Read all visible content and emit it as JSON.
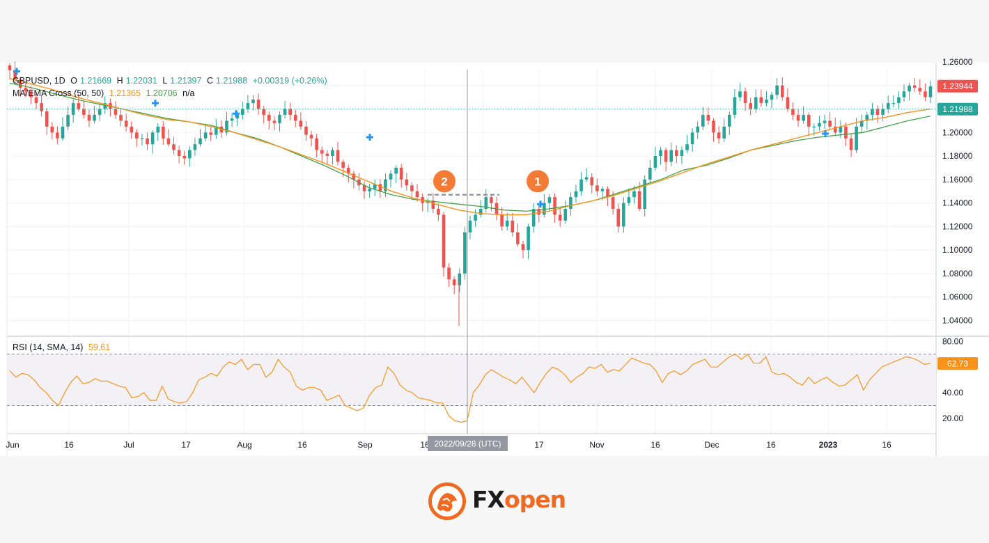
{
  "chart_data": {
    "type": "candlestick",
    "symbol": "GBPUSD",
    "interval": "1D",
    "ohlc_header": {
      "symbol_interval": "GBPUSD, 1D",
      "o_label": "O",
      "o": "1.21669",
      "h_label": "H",
      "h": "1.22031",
      "l_label": "L",
      "l": "1.21397",
      "c_label": "C",
      "c": "1.21988",
      "change": "+0.00319 (+0.26%)"
    },
    "ma_header": {
      "label": "MA/EMA Cross (50, 50)",
      "ma": "1.21365",
      "ema": "1.20706",
      "extra": "n/a"
    },
    "rsi_header": {
      "label": "RSI (14, SMA, 14)",
      "value": "59.61"
    },
    "price_axis_ticks": [
      "1.26000",
      "1.24000",
      "1.22000",
      "1.20000",
      "1.18000",
      "1.16000",
      "1.14000",
      "1.12000",
      "1.10000",
      "1.08000",
      "1.06000",
      "1.04000"
    ],
    "price_ylim": [
      1.0266,
      1.2535
    ],
    "rsi_axis_ticks": [
      "80.00",
      "60.00",
      "40.00",
      "20.00"
    ],
    "rsi_ylim": [
      8,
      84
    ],
    "rsi_bands": [
      70,
      30
    ],
    "x_ticks": [
      "Jun",
      "16",
      "Jul",
      "17",
      "Aug",
      "16",
      "Sep",
      "16",
      "17",
      "Nov",
      "16",
      "Dec",
      "16",
      "2023",
      "16"
    ],
    "crosshair_label": "2022/09/28 (UTC)",
    "last_price_label": "1.23944",
    "close_price_label": "1.21988",
    "rsi_last_label": "62.73",
    "close_price": 1.21988,
    "annotations": [
      {
        "label": "2",
        "price": 1.1585
      },
      {
        "label": "1",
        "price": 1.1585
      }
    ],
    "crossover_price": 1.147,
    "price_path": [
      1.253,
      1.245,
      1.238,
      1.235,
      1.23,
      1.225,
      1.218,
      1.205,
      1.2,
      1.195,
      1.205,
      1.215,
      1.225,
      1.22,
      1.215,
      1.21,
      1.215,
      1.22,
      1.225,
      1.22,
      1.215,
      1.21,
      1.205,
      1.2,
      1.195,
      1.195,
      1.19,
      1.2,
      1.205,
      1.195,
      1.19,
      1.185,
      1.18,
      1.178,
      1.185,
      1.19,
      1.195,
      1.2,
      1.198,
      1.205,
      1.2,
      1.21,
      1.212,
      1.215,
      1.22,
      1.225,
      1.228,
      1.22,
      1.215,
      1.21,
      1.208,
      1.215,
      1.22,
      1.215,
      1.21,
      1.205,
      1.198,
      1.195,
      1.185,
      1.182,
      1.18,
      1.185,
      1.175,
      1.17,
      1.165,
      1.16,
      1.155,
      1.15,
      1.152,
      1.156,
      1.15,
      1.16,
      1.165,
      1.17,
      1.16,
      1.155,
      1.15,
      1.145,
      1.14,
      1.142,
      1.135,
      1.13,
      1.085,
      1.075,
      1.07,
      1.08,
      1.115,
      1.125,
      1.13,
      1.135,
      1.145,
      1.14,
      1.13,
      1.12,
      1.125,
      1.115,
      1.105,
      1.1,
      1.12,
      1.135,
      1.13,
      1.14,
      1.145,
      1.13,
      1.125,
      1.135,
      1.145,
      1.15,
      1.16,
      1.162,
      1.155,
      1.15,
      1.152,
      1.145,
      1.135,
      1.12,
      1.14,
      1.145,
      1.15,
      1.135,
      1.16,
      1.17,
      1.18,
      1.185,
      1.175,
      1.185,
      1.18,
      1.185,
      1.19,
      1.2,
      1.205,
      1.215,
      1.21,
      1.2,
      1.195,
      1.205,
      1.215,
      1.23,
      1.235,
      1.225,
      1.22,
      1.23,
      1.225,
      1.228,
      1.232,
      1.24,
      1.23,
      1.22,
      1.215,
      1.21,
      1.215,
      1.205,
      1.205,
      1.208,
      1.21,
      1.205,
      1.2,
      1.205,
      1.195,
      1.185,
      1.205,
      1.21,
      1.215,
      1.22,
      1.215,
      1.22,
      1.225,
      1.225,
      1.23,
      1.235,
      1.24,
      1.238,
      1.235,
      1.23,
      1.2394
    ],
    "ma_path": [
      1.242,
      1.238,
      1.233,
      1.228,
      1.224,
      1.22,
      1.216,
      1.212,
      1.209,
      1.206,
      1.2,
      1.195,
      1.188,
      1.18,
      1.172,
      1.163,
      1.153,
      1.147,
      1.143,
      1.141,
      1.139,
      1.137,
      1.134,
      1.133,
      1.135,
      1.138,
      1.142,
      1.148,
      1.154,
      1.16,
      1.168,
      1.172,
      1.178,
      1.185,
      1.189,
      1.193,
      1.196,
      1.198,
      1.2,
      1.205,
      1.21,
      1.214
    ],
    "ema_path": [
      1.246,
      1.241,
      1.236,
      1.23,
      1.225,
      1.22,
      1.215,
      1.211,
      1.209,
      1.205,
      1.2,
      1.194,
      1.188,
      1.181,
      1.174,
      1.166,
      1.158,
      1.15,
      1.144,
      1.139,
      1.134,
      1.131,
      1.13,
      1.13,
      1.133,
      1.138,
      1.142,
      1.147,
      1.153,
      1.159,
      1.166,
      1.173,
      1.179,
      1.185,
      1.19,
      1.195,
      1.2,
      1.205,
      1.21,
      1.213,
      1.217,
      1.22
    ],
    "rsi_path": [
      57,
      52,
      55,
      54,
      50,
      44,
      40,
      34,
      30,
      40,
      48,
      53,
      47,
      48,
      51,
      49,
      49,
      47,
      45,
      44,
      36,
      37,
      40,
      34,
      34,
      45,
      35,
      33,
      32,
      33,
      40,
      50,
      52,
      55,
      53,
      60,
      64,
      62,
      66,
      58,
      62,
      62,
      52,
      56,
      66,
      60,
      56,
      45,
      42,
      44,
      44,
      42,
      34,
      36,
      38,
      30,
      28,
      26,
      28,
      38,
      44,
      46,
      60,
      55,
      46,
      42,
      40,
      36,
      35,
      34,
      32,
      32,
      22,
      18,
      17,
      18,
      40,
      46,
      54,
      58,
      55,
      52,
      50,
      47,
      52,
      46,
      40,
      48,
      55,
      60,
      58,
      54,
      48,
      52,
      55,
      60,
      59,
      62,
      56,
      58,
      57,
      62,
      67,
      65,
      63,
      62,
      57,
      48,
      55,
      57,
      54,
      57,
      62,
      64,
      66,
      60,
      60,
      64,
      68,
      70,
      66,
      70,
      63,
      63,
      68,
      56,
      54,
      55,
      52,
      48,
      46,
      52,
      47,
      50,
      52,
      48,
      45,
      46,
      50,
      54,
      42,
      50,
      55,
      60,
      62,
      64,
      66,
      68,
      67,
      65,
      62,
      63
    ]
  },
  "logo": {
    "brand_fx": "FX",
    "brand_open": "open"
  }
}
